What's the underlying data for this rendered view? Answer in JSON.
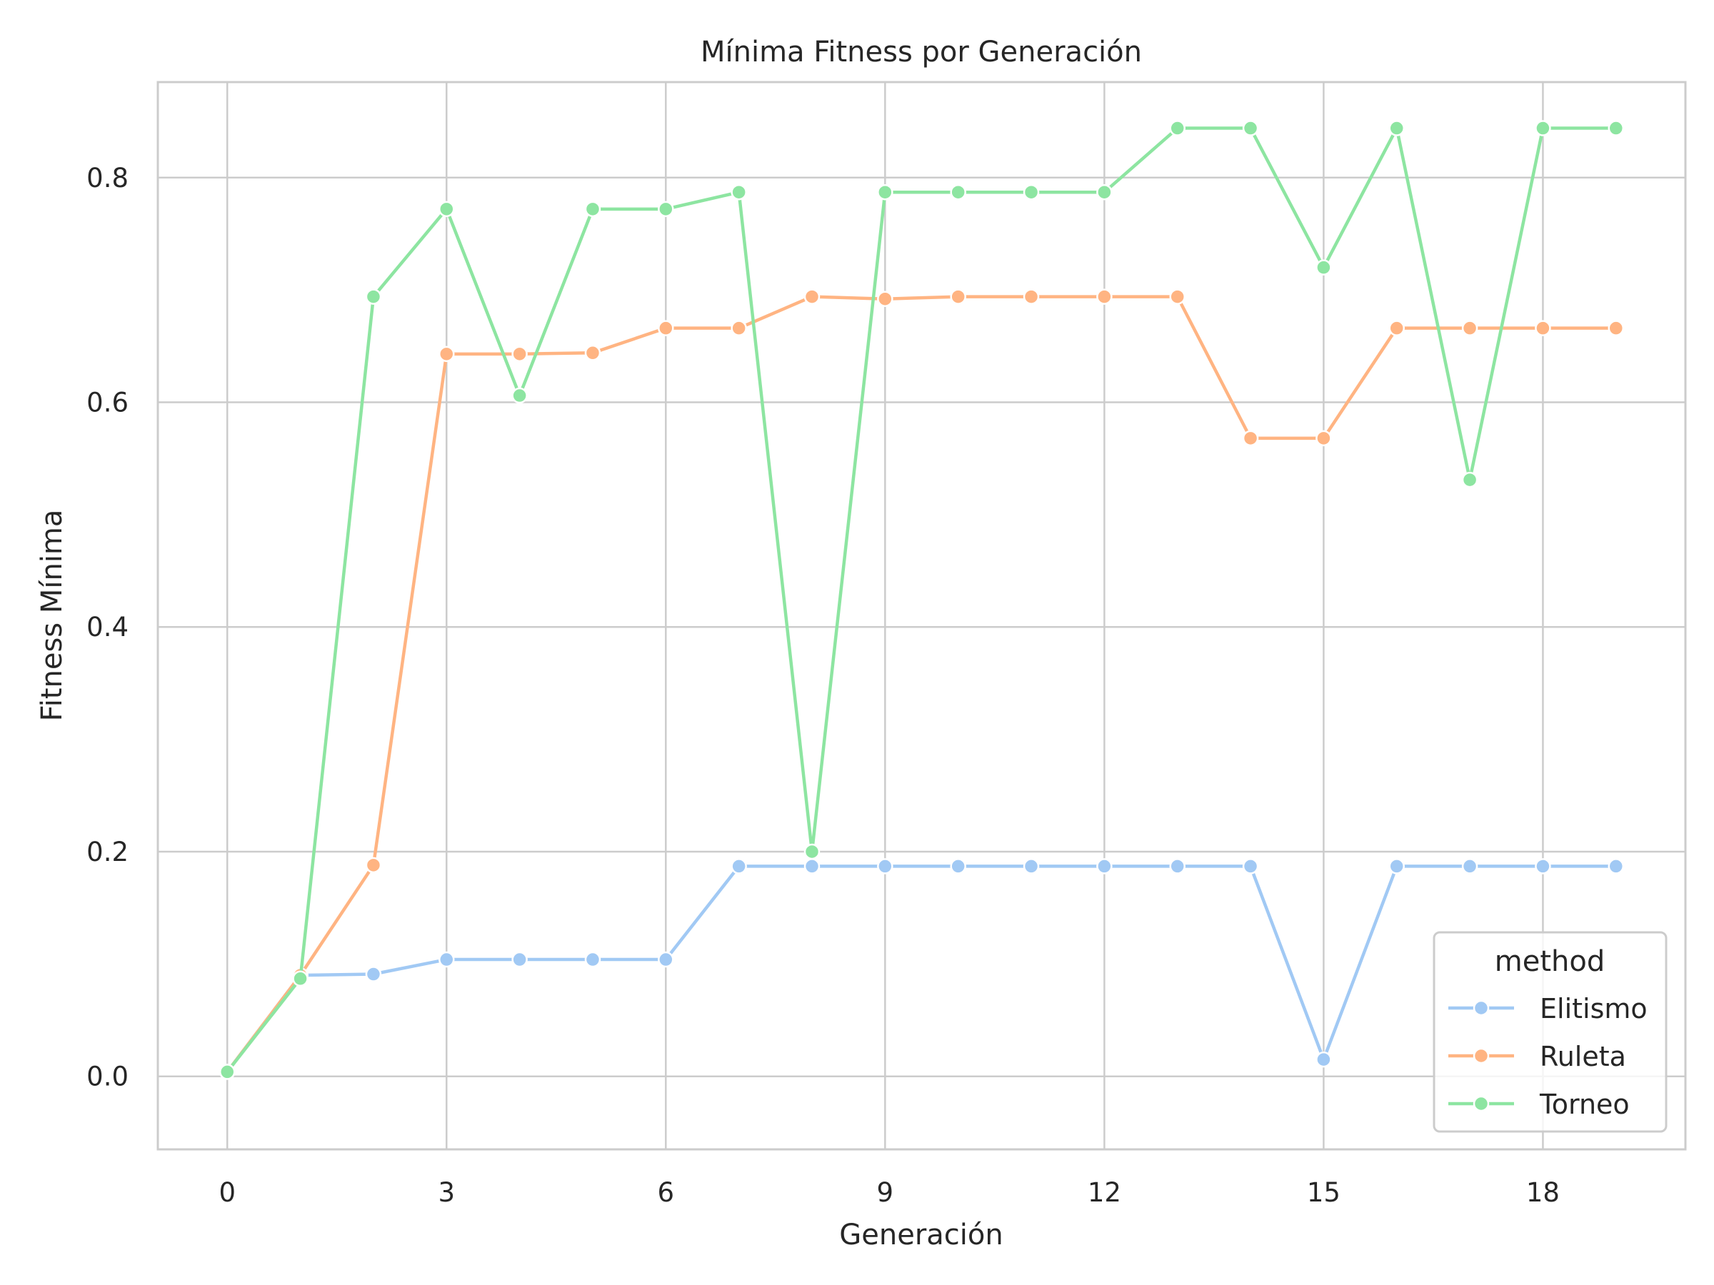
{
  "chart_data": {
    "type": "line",
    "title": "Mínima Fitness por Generación",
    "xlabel": "Generación",
    "ylabel": "Fitness Mínima",
    "xlim": [
      -0.95,
      19.95
    ],
    "ylim": [
      -0.065,
      0.885
    ],
    "xticks": [
      0,
      3,
      6,
      9,
      12,
      15,
      18
    ],
    "yticks": [
      0.0,
      0.2,
      0.4,
      0.6,
      0.8
    ],
    "ytick_labels": [
      "0.0",
      "0.2",
      "0.4",
      "0.6",
      "0.8"
    ],
    "grid": true,
    "legend": {
      "title": "method",
      "placement": "lower right"
    },
    "x": [
      0,
      1,
      2,
      3,
      4,
      5,
      6,
      7,
      8,
      9,
      10,
      11,
      12,
      13,
      14,
      15,
      16,
      17,
      18,
      19
    ],
    "series": [
      {
        "name": "Elitismo",
        "color": "#a1c9f4",
        "values": [
          0.004,
          0.09,
          0.091,
          0.104,
          0.104,
          0.104,
          0.104,
          0.187,
          0.187,
          0.187,
          0.187,
          0.187,
          0.187,
          0.187,
          0.187,
          0.015,
          0.187,
          0.187,
          0.187,
          0.187
        ]
      },
      {
        "name": "Ruleta",
        "color": "#ffb482",
        "values": [
          0.004,
          0.09,
          0.188,
          0.643,
          0.643,
          0.644,
          0.666,
          0.666,
          0.694,
          0.692,
          0.694,
          0.694,
          0.694,
          0.694,
          0.568,
          0.568,
          0.666,
          0.666,
          0.666,
          0.666
        ]
      },
      {
        "name": "Torneo",
        "color": "#8de5a1",
        "values": [
          0.004,
          0.087,
          0.694,
          0.772,
          0.606,
          0.772,
          0.772,
          0.787,
          0.2,
          0.787,
          0.787,
          0.787,
          0.787,
          0.844,
          0.844,
          0.72,
          0.844,
          0.531,
          0.844,
          0.844
        ]
      }
    ]
  }
}
